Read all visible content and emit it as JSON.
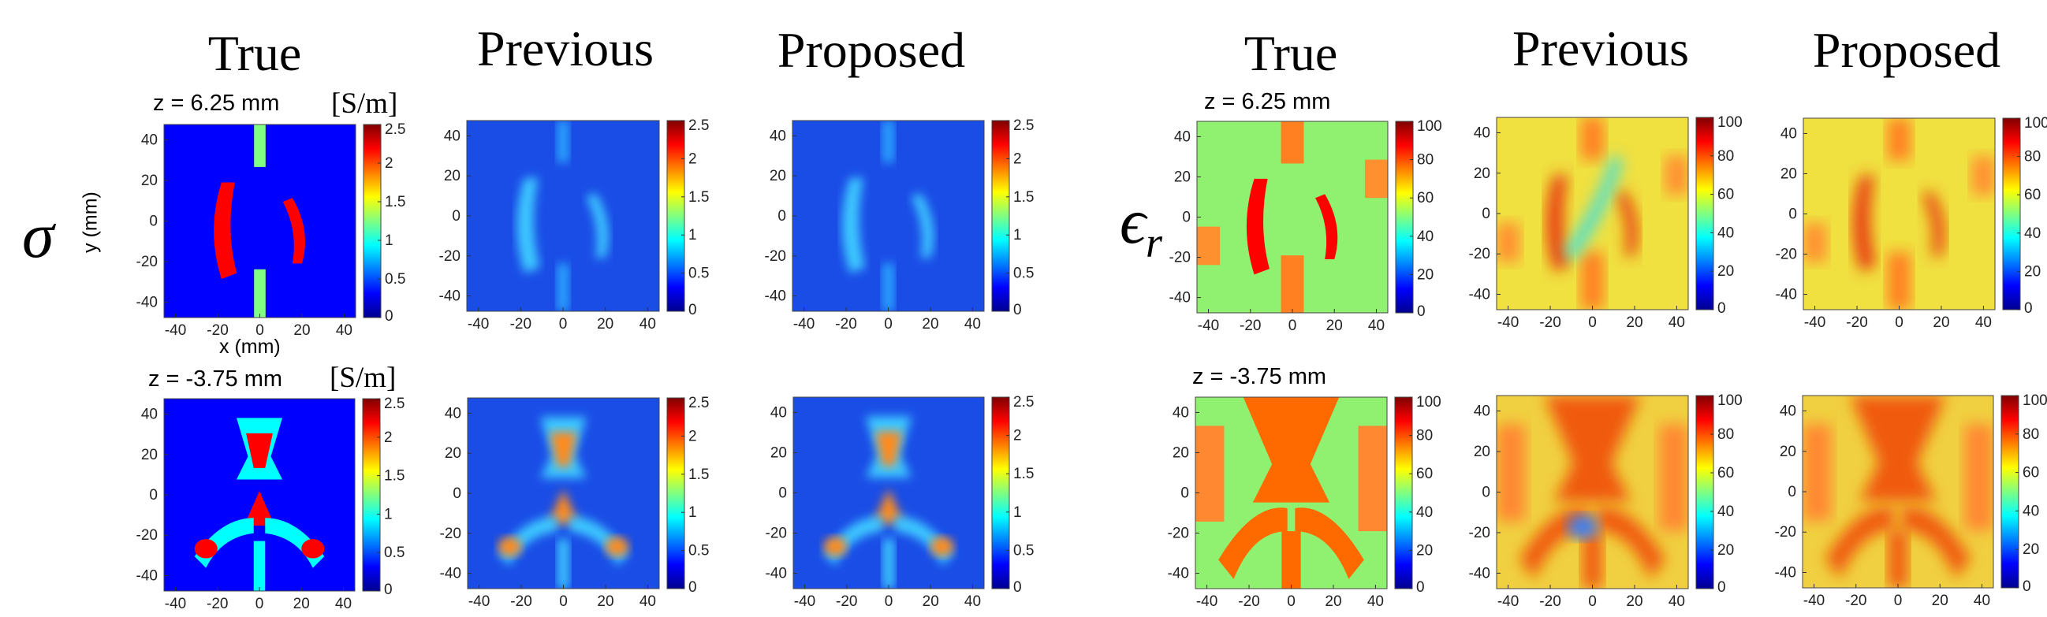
{
  "column_titles": [
    "True",
    "Previous",
    "Proposed",
    "True",
    "Previous",
    "Proposed"
  ],
  "row_labels": {
    "sigma": "σ",
    "eps_main": "ϵ",
    "eps_sub": "r"
  },
  "slice_labels": [
    "z = 6.25 mm",
    "z = -3.75 mm",
    "z = 6.25 mm",
    "z = -3.75 mm"
  ],
  "units": {
    "sigma": "[S/m]"
  },
  "axis_labels": {
    "y": "y (mm)",
    "x": "x (mm)"
  },
  "colormap": [
    "#00008f",
    "#0000ff",
    "#0080ff",
    "#00ffff",
    "#80ff80",
    "#ffff00",
    "#ff8000",
    "#ff0000",
    "#800000"
  ],
  "panels": [
    {
      "quantity": "sigma",
      "method": "True",
      "slice": "z = 6.25 mm"
    },
    {
      "quantity": "sigma",
      "method": "Previous",
      "slice": "z = 6.25 mm"
    },
    {
      "quantity": "sigma",
      "method": "Proposed",
      "slice": "z = 6.25 mm"
    },
    {
      "quantity": "epsilon_r",
      "method": "True",
      "slice": "z = 6.25 mm"
    },
    {
      "quantity": "epsilon_r",
      "method": "Previous",
      "slice": "z = 6.25 mm"
    },
    {
      "quantity": "epsilon_r",
      "method": "Proposed",
      "slice": "z = 6.25 mm"
    },
    {
      "quantity": "sigma",
      "method": "True",
      "slice": "z = -3.75 mm"
    },
    {
      "quantity": "sigma",
      "method": "Previous",
      "slice": "z = -3.75 mm"
    },
    {
      "quantity": "sigma",
      "method": "Proposed",
      "slice": "z = -3.75 mm"
    },
    {
      "quantity": "epsilon_r",
      "method": "True",
      "slice": "z = -3.75 mm"
    },
    {
      "quantity": "epsilon_r",
      "method": "Previous",
      "slice": "z = -3.75 mm"
    },
    {
      "quantity": "epsilon_r",
      "method": "Proposed",
      "slice": "z = -3.75 mm"
    }
  ],
  "axes": {
    "x_ticks": [
      "-40",
      "-20",
      "0",
      "20",
      "40"
    ],
    "y_ticks": [
      "40",
      "20",
      "0",
      "-20",
      "-40"
    ],
    "sigma_colorbar_ticks": [
      "2.5",
      "2",
      "1.5",
      "1",
      "0.5",
      "0"
    ],
    "eps_colorbar_ticks": [
      "100",
      "80",
      "60",
      "40",
      "20",
      "0"
    ],
    "sigma_range": [
      0,
      2.5
    ],
    "eps_range": [
      0,
      100
    ]
  }
}
